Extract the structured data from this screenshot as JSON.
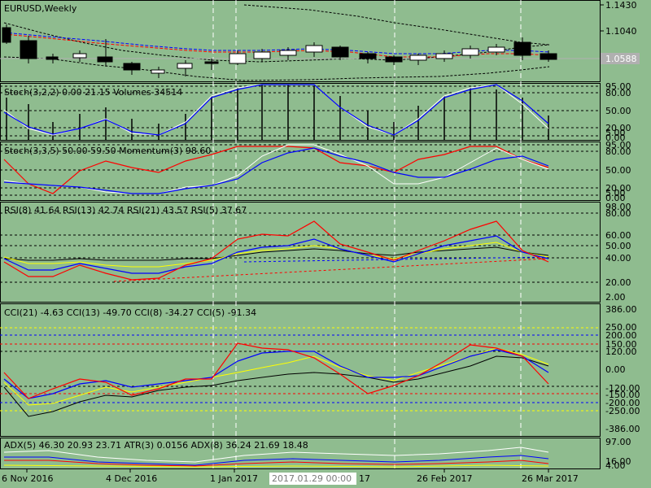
{
  "colors": {
    "background": "#8fbc8f",
    "blue": "#0000ff",
    "red": "#ff0000",
    "yellow": "#ffff00",
    "white": "#ffffff",
    "black": "#000000",
    "navy": "#00008b"
  },
  "main": {
    "title": "EURUSD,Weekly",
    "price_ticks": [
      "1.1430",
      "1.1040",
      "1.0588"
    ],
    "current_price": "1.0588"
  },
  "panels": {
    "stoch1": {
      "label": "Stoch(3,2,2) 0.00 21.15 Volumes 34514",
      "ticks": [
        "95.00",
        "80.00",
        "50.00",
        "20.00",
        "5.00",
        "0.00"
      ]
    },
    "stoch2": {
      "label": "Stoch(3,3,5) 50.00 59.50 Momentum(3) 98.60",
      "ticks": [
        "95.00",
        "80.00",
        "50.00",
        "20.00",
        "5.00",
        "0.00"
      ]
    },
    "rsi": {
      "label": "RSI(8) 41.64 RSI(13) 42.74 RSI(21) 43.57 RSI(5) 37.67",
      "ticks": [
        "98.00",
        "80.00",
        "60.00",
        "50.00",
        "40.00",
        "20.00",
        "2.00"
      ]
    },
    "cci": {
      "label": "CCI(21) -4.63 CCI(13) -49.70 CCI(8) -34.27 CCI(5) -91.34",
      "ticks": [
        "386.00",
        "250.00",
        "200.00",
        "150.00",
        "120.00",
        "0.00",
        "-120.00",
        "-150.00",
        "-200.00",
        "-250.00",
        "-386.00"
      ]
    },
    "adx": {
      "label": "ADX(5) 46.30 20.93 23.71 ATR(3) 0.0156 ADX(8) 36.24 21.69 18.48",
      "ticks": [
        "97.00",
        "16.00",
        "4.00"
      ]
    }
  },
  "x_labels": [
    "6 Nov 2016",
    "4 Dec 2016",
    "1 Jan 2017",
    "2017.01.29 00:00",
    "26 Feb 2017",
    "26 Mar 2017"
  ],
  "crosshair_time": "2017.01.29 00:00",
  "x_hidden_fragment": "17"
}
